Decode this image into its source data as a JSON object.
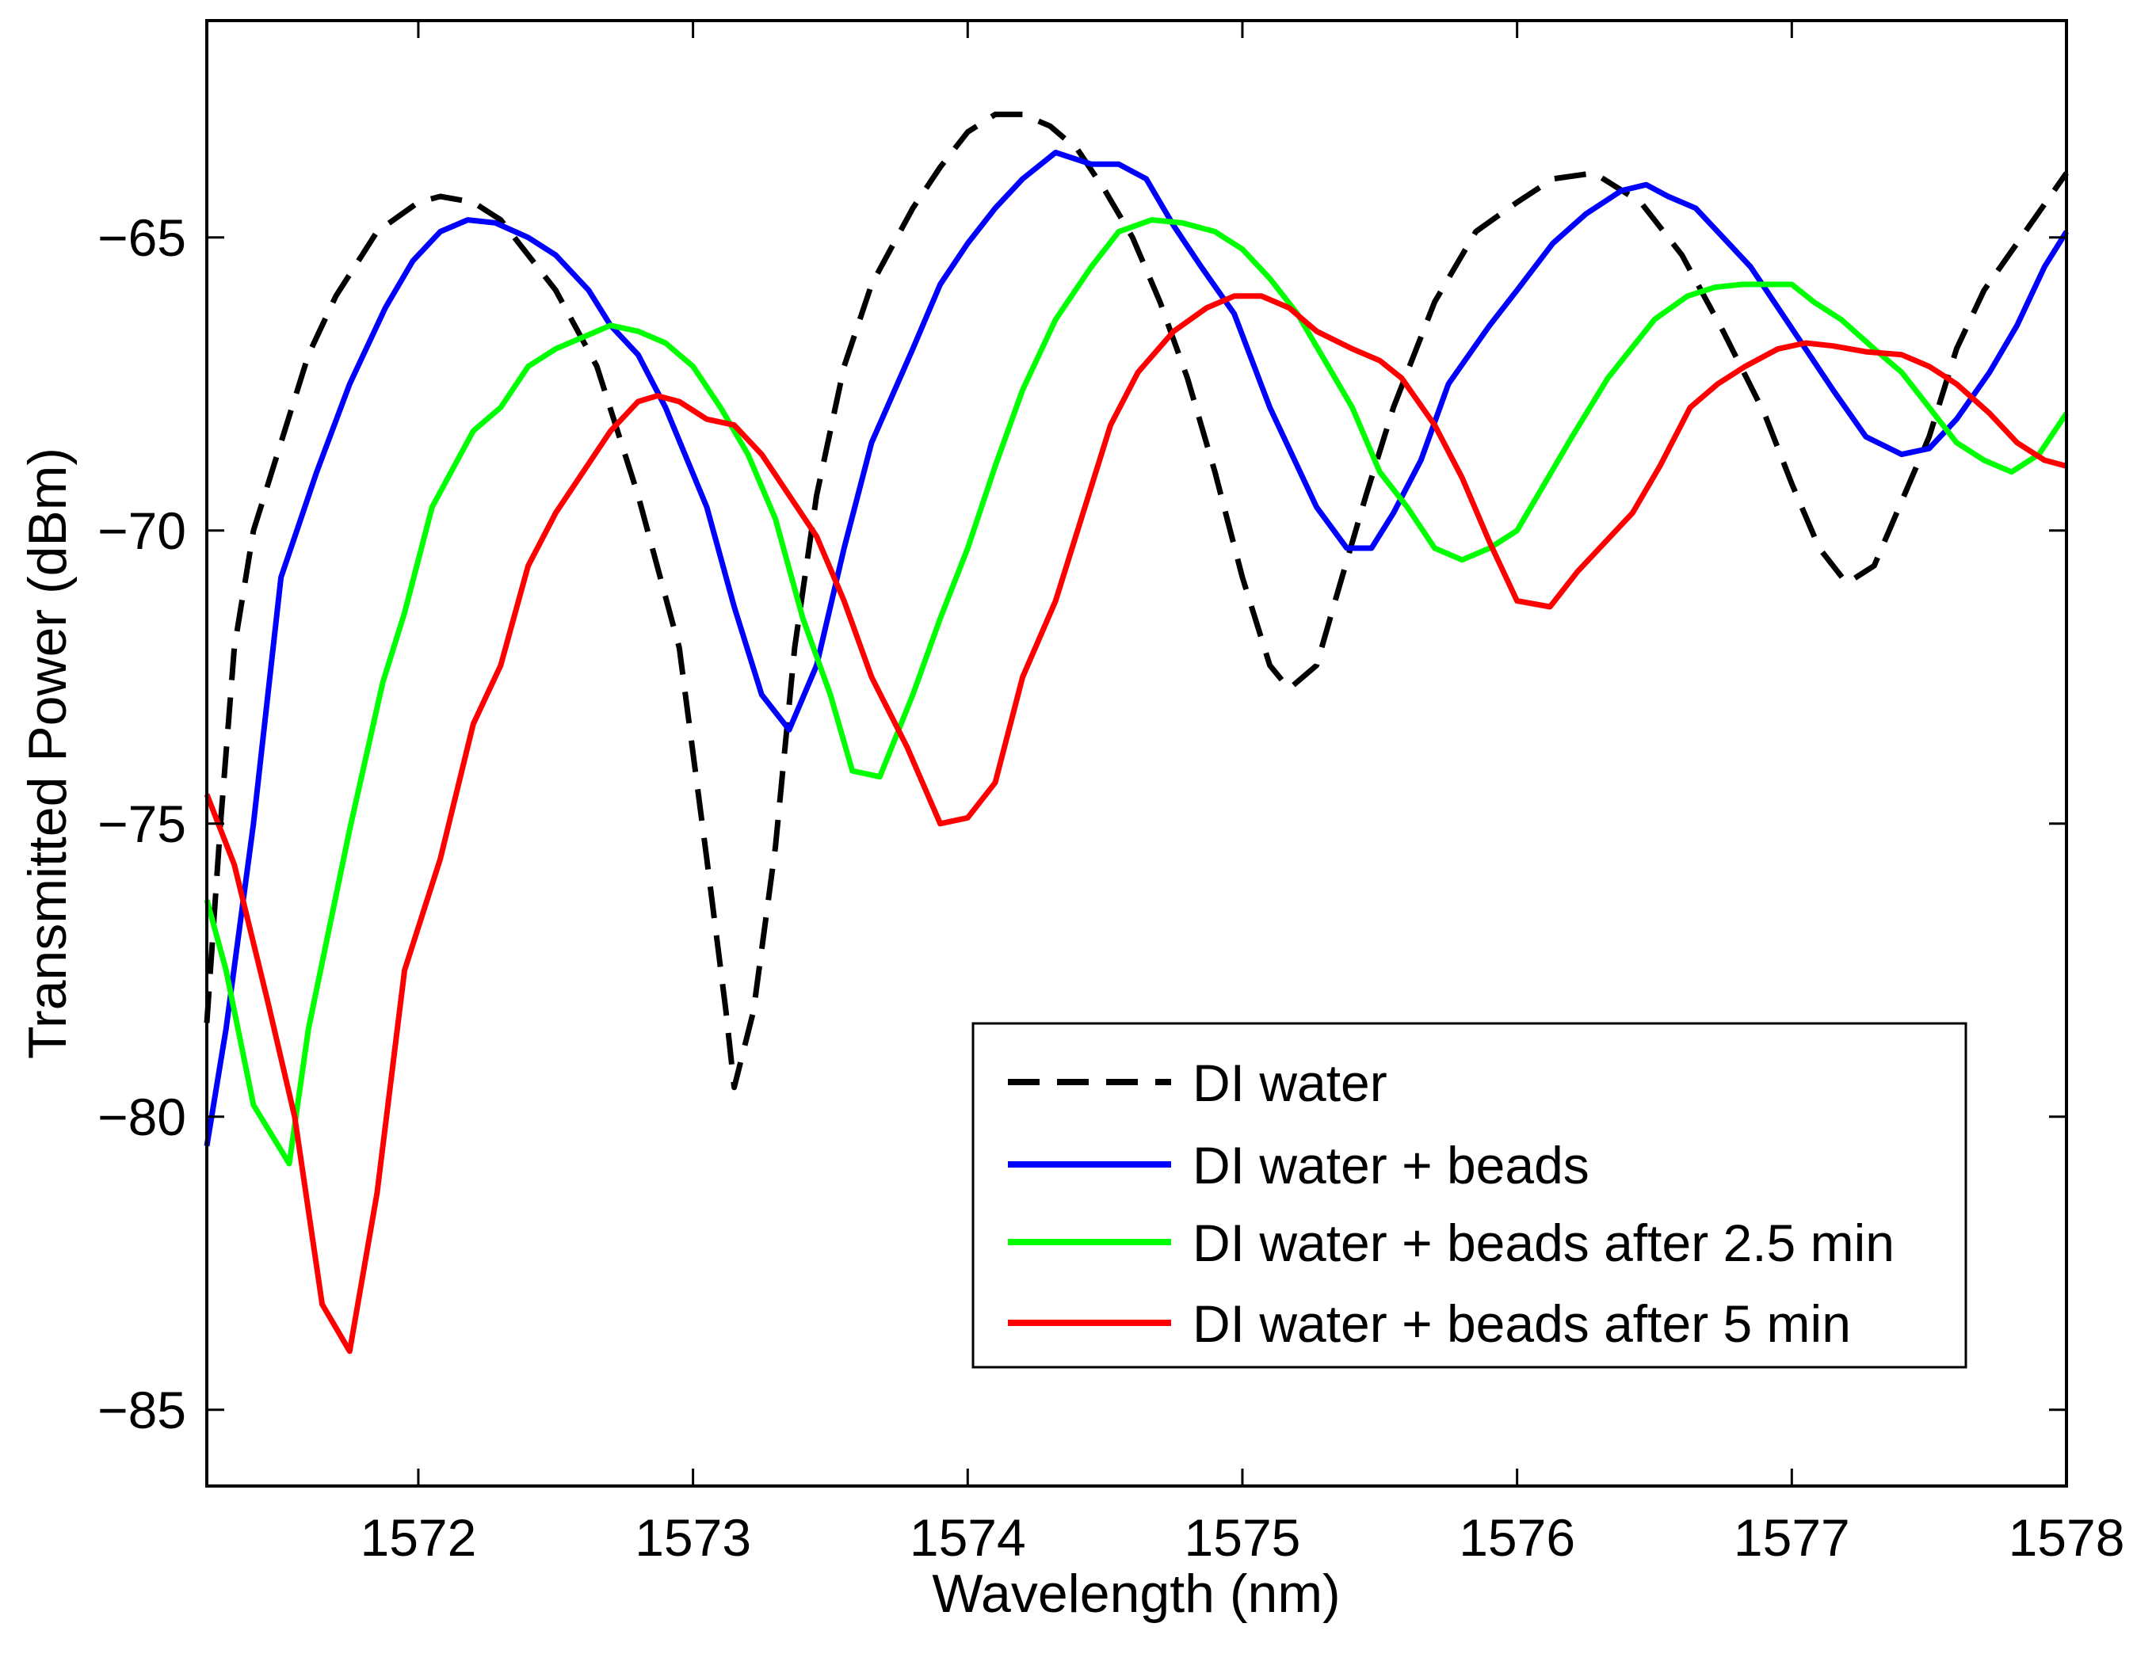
{
  "chart_data": {
    "type": "line",
    "title": "",
    "xlabel": "Wavelength (nm)",
    "ylabel": "Transmitted Power (dBm)",
    "xlim": [
      1571.23,
      1578.0
    ],
    "ylim": [
      -86.3,
      -61.3
    ],
    "xticks": [
      1572,
      1573,
      1574,
      1575,
      1576,
      1577,
      1578
    ],
    "yticks": [
      -85,
      -80,
      -75,
      -70,
      -65
    ],
    "xtick_labels": [
      "1572",
      "1573",
      "1574",
      "1575",
      "1576",
      "1577",
      "1578"
    ],
    "ytick_labels": [
      "−85",
      "−80",
      "−75",
      "−70",
      "−65"
    ],
    "grid": false,
    "legend_position": "bottom-right",
    "series": [
      {
        "name": "DI water",
        "color": "#000000",
        "dash": "dashed",
        "points": [
          [
            1571.23,
            -78.4
          ],
          [
            1571.28,
            -75.0
          ],
          [
            1571.33,
            -72.0
          ],
          [
            1571.4,
            -70.0
          ],
          [
            1571.5,
            -68.5
          ],
          [
            1571.6,
            -67.0
          ],
          [
            1571.7,
            -66.0
          ],
          [
            1571.85,
            -64.9
          ],
          [
            1572.0,
            -64.4
          ],
          [
            1572.08,
            -64.3
          ],
          [
            1572.2,
            -64.4
          ],
          [
            1572.3,
            -64.7
          ],
          [
            1572.5,
            -65.9
          ],
          [
            1572.65,
            -67.2
          ],
          [
            1572.8,
            -69.4
          ],
          [
            1572.95,
            -72.0
          ],
          [
            1573.05,
            -75.6
          ],
          [
            1573.12,
            -78.2
          ],
          [
            1573.15,
            -79.5
          ],
          [
            1573.22,
            -78.2
          ],
          [
            1573.3,
            -75.4
          ],
          [
            1573.37,
            -72.0
          ],
          [
            1573.45,
            -69.4
          ],
          [
            1573.55,
            -67.2
          ],
          [
            1573.65,
            -65.8
          ],
          [
            1573.8,
            -64.5
          ],
          [
            1573.9,
            -63.8
          ],
          [
            1574.0,
            -63.2
          ],
          [
            1574.1,
            -62.9
          ],
          [
            1574.2,
            -62.9
          ],
          [
            1574.3,
            -63.1
          ],
          [
            1574.4,
            -63.5
          ],
          [
            1574.5,
            -64.2
          ],
          [
            1574.6,
            -65.0
          ],
          [
            1574.7,
            -66.1
          ],
          [
            1574.8,
            -67.4
          ],
          [
            1574.9,
            -69.0
          ],
          [
            1575.0,
            -70.8
          ],
          [
            1575.1,
            -72.3
          ],
          [
            1575.17,
            -72.7
          ],
          [
            1575.27,
            -72.3
          ],
          [
            1575.35,
            -71.0
          ],
          [
            1575.45,
            -69.4
          ],
          [
            1575.55,
            -67.9
          ],
          [
            1575.7,
            -66.1
          ],
          [
            1575.85,
            -64.9
          ],
          [
            1576.0,
            -64.4
          ],
          [
            1576.13,
            -64.0
          ],
          [
            1576.28,
            -63.9
          ],
          [
            1576.45,
            -64.4
          ],
          [
            1576.6,
            -65.3
          ],
          [
            1576.75,
            -66.6
          ],
          [
            1576.9,
            -68.0
          ],
          [
            1577.0,
            -69.2
          ],
          [
            1577.1,
            -70.3
          ],
          [
            1577.2,
            -70.9
          ],
          [
            1577.3,
            -70.6
          ],
          [
            1577.4,
            -69.5
          ],
          [
            1577.5,
            -68.4
          ],
          [
            1577.6,
            -66.9
          ],
          [
            1577.7,
            -65.9
          ],
          [
            1577.85,
            -64.9
          ],
          [
            1578.0,
            -63.9
          ]
        ]
      },
      {
        "name": "DI water + beads",
        "color": "#0000ff",
        "dash": "solid",
        "points": [
          [
            1571.23,
            -80.5
          ],
          [
            1571.3,
            -78.5
          ],
          [
            1571.4,
            -75.0
          ],
          [
            1571.5,
            -70.8
          ],
          [
            1571.63,
            -69.0
          ],
          [
            1571.75,
            -67.5
          ],
          [
            1571.88,
            -66.2
          ],
          [
            1571.98,
            -65.4
          ],
          [
            1572.08,
            -64.9
          ],
          [
            1572.18,
            -64.7
          ],
          [
            1572.28,
            -64.75
          ],
          [
            1572.4,
            -65.0
          ],
          [
            1572.5,
            -65.3
          ],
          [
            1572.62,
            -65.9
          ],
          [
            1572.7,
            -66.5
          ],
          [
            1572.8,
            -67.0
          ],
          [
            1572.9,
            -67.9
          ],
          [
            1573.05,
            -69.6
          ],
          [
            1573.15,
            -71.3
          ],
          [
            1573.25,
            -72.8
          ],
          [
            1573.35,
            -73.4
          ],
          [
            1573.45,
            -72.3
          ],
          [
            1573.55,
            -70.3
          ],
          [
            1573.65,
            -68.5
          ],
          [
            1573.8,
            -66.9
          ],
          [
            1573.9,
            -65.8
          ],
          [
            1574.0,
            -65.1
          ],
          [
            1574.1,
            -64.5
          ],
          [
            1574.2,
            -64.0
          ],
          [
            1574.32,
            -63.55
          ],
          [
            1574.45,
            -63.75
          ],
          [
            1574.55,
            -63.75
          ],
          [
            1574.65,
            -64.0
          ],
          [
            1574.75,
            -64.8
          ],
          [
            1574.85,
            -65.5
          ],
          [
            1574.97,
            -66.3
          ],
          [
            1575.1,
            -67.9
          ],
          [
            1575.27,
            -69.6
          ],
          [
            1575.38,
            -70.3
          ],
          [
            1575.47,
            -70.3
          ],
          [
            1575.55,
            -69.7
          ],
          [
            1575.65,
            -68.8
          ],
          [
            1575.75,
            -67.5
          ],
          [
            1575.9,
            -66.5
          ],
          [
            1576.0,
            -65.9
          ],
          [
            1576.13,
            -65.1
          ],
          [
            1576.25,
            -64.6
          ],
          [
            1576.38,
            -64.2
          ],
          [
            1576.47,
            -64.1
          ],
          [
            1576.55,
            -64.3
          ],
          [
            1576.65,
            -64.5
          ],
          [
            1576.75,
            -65.0
          ],
          [
            1576.85,
            -65.5
          ],
          [
            1576.95,
            -66.2
          ],
          [
            1577.05,
            -66.9
          ],
          [
            1577.15,
            -67.6
          ],
          [
            1577.27,
            -68.4
          ],
          [
            1577.4,
            -68.7
          ],
          [
            1577.5,
            -68.6
          ],
          [
            1577.6,
            -68.1
          ],
          [
            1577.72,
            -67.3
          ],
          [
            1577.82,
            -66.5
          ],
          [
            1577.92,
            -65.5
          ],
          [
            1578.0,
            -64.9
          ]
        ]
      },
      {
        "name": "DI water + beads after 2.5 min",
        "color": "#00ff00",
        "dash": "solid",
        "points": [
          [
            1571.23,
            -76.3
          ],
          [
            1571.3,
            -77.5
          ],
          [
            1571.4,
            -79.8
          ],
          [
            1571.53,
            -80.8
          ],
          [
            1571.6,
            -78.5
          ],
          [
            1571.75,
            -75.1
          ],
          [
            1571.87,
            -72.6
          ],
          [
            1571.95,
            -71.4
          ],
          [
            1572.05,
            -69.6
          ],
          [
            1572.2,
            -68.3
          ],
          [
            1572.3,
            -67.9
          ],
          [
            1572.4,
            -67.2
          ],
          [
            1572.5,
            -66.9
          ],
          [
            1572.6,
            -66.7
          ],
          [
            1572.7,
            -66.5
          ],
          [
            1572.8,
            -66.6
          ],
          [
            1572.9,
            -66.8
          ],
          [
            1573.0,
            -67.2
          ],
          [
            1573.1,
            -67.9
          ],
          [
            1573.2,
            -68.7
          ],
          [
            1573.3,
            -69.8
          ],
          [
            1573.4,
            -71.5
          ],
          [
            1573.5,
            -72.8
          ],
          [
            1573.58,
            -74.1
          ],
          [
            1573.68,
            -74.2
          ],
          [
            1573.8,
            -72.8
          ],
          [
            1573.9,
            -71.5
          ],
          [
            1574.0,
            -70.3
          ],
          [
            1574.1,
            -68.9
          ],
          [
            1574.2,
            -67.6
          ],
          [
            1574.32,
            -66.4
          ],
          [
            1574.45,
            -65.5
          ],
          [
            1574.55,
            -64.9
          ],
          [
            1574.67,
            -64.7
          ],
          [
            1574.78,
            -64.75
          ],
          [
            1574.9,
            -64.9
          ],
          [
            1575.0,
            -65.2
          ],
          [
            1575.1,
            -65.7
          ],
          [
            1575.2,
            -66.3
          ],
          [
            1575.3,
            -67.1
          ],
          [
            1575.4,
            -67.9
          ],
          [
            1575.5,
            -69.0
          ],
          [
            1575.6,
            -69.6
          ],
          [
            1575.7,
            -70.3
          ],
          [
            1575.8,
            -70.5
          ],
          [
            1575.9,
            -70.3
          ],
          [
            1576.0,
            -70.0
          ],
          [
            1576.1,
            -69.2
          ],
          [
            1576.2,
            -68.4
          ],
          [
            1576.33,
            -67.4
          ],
          [
            1576.5,
            -66.4
          ],
          [
            1576.62,
            -66.0
          ],
          [
            1576.72,
            -65.85
          ],
          [
            1576.82,
            -65.8
          ],
          [
            1576.9,
            -65.8
          ],
          [
            1577.0,
            -65.8
          ],
          [
            1577.08,
            -66.1
          ],
          [
            1577.18,
            -66.4
          ],
          [
            1577.3,
            -66.9
          ],
          [
            1577.4,
            -67.3
          ],
          [
            1577.5,
            -67.9
          ],
          [
            1577.6,
            -68.5
          ],
          [
            1577.7,
            -68.8
          ],
          [
            1577.8,
            -69.0
          ],
          [
            1577.9,
            -68.7
          ],
          [
            1578.0,
            -68.0
          ]
        ]
      },
      {
        "name": "DI water + beads after 5 min",
        "color": "#ff0000",
        "dash": "solid",
        "points": [
          [
            1571.23,
            -74.5
          ],
          [
            1571.33,
            -75.7
          ],
          [
            1571.45,
            -78.0
          ],
          [
            1571.55,
            -80.0
          ],
          [
            1571.65,
            -83.2
          ],
          [
            1571.75,
            -84.0
          ],
          [
            1571.85,
            -81.3
          ],
          [
            1571.95,
            -77.5
          ],
          [
            1572.08,
            -75.6
          ],
          [
            1572.2,
            -73.3
          ],
          [
            1572.3,
            -72.3
          ],
          [
            1572.4,
            -70.6
          ],
          [
            1572.5,
            -69.7
          ],
          [
            1572.6,
            -69.0
          ],
          [
            1572.7,
            -68.3
          ],
          [
            1572.8,
            -67.8
          ],
          [
            1572.87,
            -67.7
          ],
          [
            1572.95,
            -67.8
          ],
          [
            1573.05,
            -68.1
          ],
          [
            1573.15,
            -68.2
          ],
          [
            1573.25,
            -68.7
          ],
          [
            1573.35,
            -69.4
          ],
          [
            1573.45,
            -70.1
          ],
          [
            1573.55,
            -71.2
          ],
          [
            1573.65,
            -72.5
          ],
          [
            1573.78,
            -73.7
          ],
          [
            1573.9,
            -75.0
          ],
          [
            1574.0,
            -74.9
          ],
          [
            1574.1,
            -74.3
          ],
          [
            1574.2,
            -72.5
          ],
          [
            1574.32,
            -71.2
          ],
          [
            1574.42,
            -69.7
          ],
          [
            1574.52,
            -68.2
          ],
          [
            1574.62,
            -67.3
          ],
          [
            1574.75,
            -66.6
          ],
          [
            1574.87,
            -66.2
          ],
          [
            1574.97,
            -66.0
          ],
          [
            1575.07,
            -66.0
          ],
          [
            1575.17,
            -66.2
          ],
          [
            1575.27,
            -66.6
          ],
          [
            1575.4,
            -66.9
          ],
          [
            1575.5,
            -67.1
          ],
          [
            1575.58,
            -67.4
          ],
          [
            1575.7,
            -68.2
          ],
          [
            1575.8,
            -69.1
          ],
          [
            1575.9,
            -70.2
          ],
          [
            1576.0,
            -71.2
          ],
          [
            1576.12,
            -71.3
          ],
          [
            1576.22,
            -70.7
          ],
          [
            1576.32,
            -70.2
          ],
          [
            1576.42,
            -69.7
          ],
          [
            1576.52,
            -68.9
          ],
          [
            1576.63,
            -67.9
          ],
          [
            1576.73,
            -67.5
          ],
          [
            1576.83,
            -67.2
          ],
          [
            1576.95,
            -66.9
          ],
          [
            1577.05,
            -66.8
          ],
          [
            1577.15,
            -66.85
          ],
          [
            1577.27,
            -66.95
          ],
          [
            1577.4,
            -67.0
          ],
          [
            1577.5,
            -67.2
          ],
          [
            1577.6,
            -67.5
          ],
          [
            1577.72,
            -68.0
          ],
          [
            1577.82,
            -68.5
          ],
          [
            1577.92,
            -68.8
          ],
          [
            1578.0,
            -68.9
          ]
        ]
      }
    ]
  }
}
